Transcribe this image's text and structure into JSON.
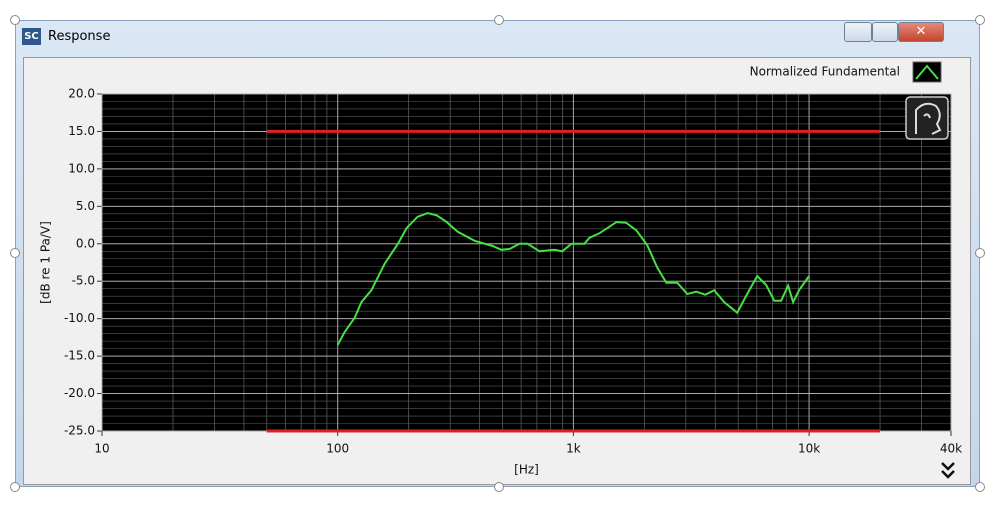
{
  "window": {
    "title": "Response"
  },
  "chart_data": {
    "type": "line",
    "xscale": "log",
    "y_label": "[dB re 1 Pa/V]",
    "x_label": "[Hz]",
    "xlim": [
      10,
      40000
    ],
    "xticks": [
      10,
      100,
      {
        "value": 1000,
        "label": "1k"
      },
      {
        "value": 10000,
        "label": "10k"
      },
      {
        "value": 40000,
        "label": "40k"
      }
    ],
    "ylim": [
      -25,
      20
    ],
    "yticks": [
      {
        "value": -25,
        "label": "-25.0"
      },
      {
        "value": -20,
        "label": "-20.0"
      },
      {
        "value": -15,
        "label": "-15.0"
      },
      {
        "value": -10,
        "label": "-10.0"
      },
      {
        "value": -5,
        "label": "-5.0"
      },
      {
        "value": 0,
        "label": "0.0"
      },
      {
        "value": 5,
        "label": "5.0"
      },
      {
        "value": 10,
        "label": "10.0"
      },
      {
        "value": 15,
        "label": "15.0"
      },
      {
        "value": 20,
        "label": "20.0"
      }
    ],
    "grid": true,
    "background": "#000000",
    "legend": "top-right",
    "series": [
      {
        "name": "Normalized Fundamental",
        "color": "#44e044",
        "x": [
          100,
          107,
          118,
          126,
          139,
          158,
          180,
          196,
          218,
          241,
          263,
          290,
          323,
          381,
          454,
          495,
          536,
          590,
          639,
          718,
          831,
          898,
          981,
          1113,
          1169,
          1289,
          1522,
          1677,
          1849,
          2059,
          2270,
          2479,
          2759,
          3042,
          3321,
          3626,
          3959,
          4364,
          4954,
          5462,
          6021,
          6574,
          7108,
          7609,
          8147,
          8555,
          9072,
          10000
        ],
        "values": [
          -13.5,
          -11.8,
          -9.9,
          -7.8,
          -6.2,
          -2.7,
          0,
          2.1,
          3.6,
          4.1,
          3.8,
          2.9,
          1.6,
          0.4,
          -0.3,
          -0.8,
          -0.7,
          0,
          0,
          -1,
          -0.8,
          -1,
          0,
          0,
          0.8,
          1.4,
          2.9,
          2.8,
          1.8,
          -0.2,
          -3.2,
          -5.2,
          -5.2,
          -6.7,
          -6.4,
          -6.8,
          -6.2,
          -7.8,
          -9.2,
          -6.7,
          -4.3,
          -5.5,
          -7.6,
          -7.6,
          -5.6,
          -7.8,
          -6.2,
          -4.3
        ]
      }
    ],
    "limit_lines": [
      {
        "color": "#e02020",
        "x": [
          50,
          20000
        ],
        "values": [
          15,
          15
        ]
      },
      {
        "color": "#e02020",
        "x": [
          50,
          20000
        ],
        "values": [
          -25,
          -25
        ]
      }
    ]
  }
}
